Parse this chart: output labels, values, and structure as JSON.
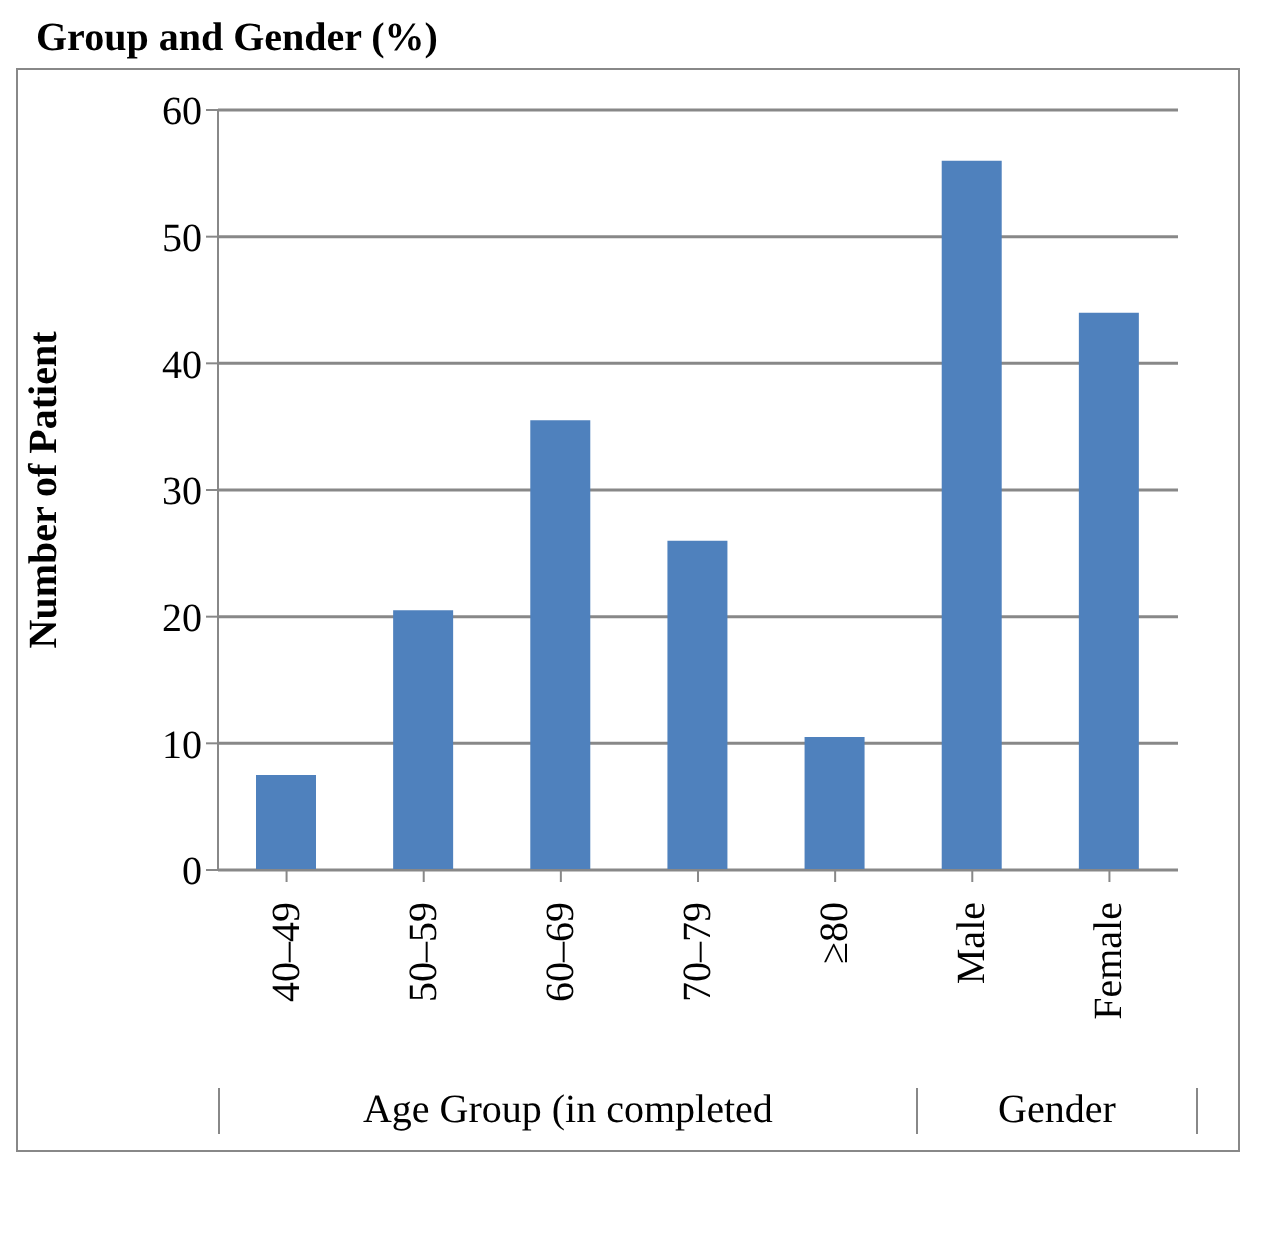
{
  "chart_data": {
    "type": "bar",
    "title": "Group and Gender (%)",
    "ylabel": "Number of Patient",
    "categories": [
      "40–49",
      "50–59",
      "60–69",
      "70–79",
      "≥80",
      "Male",
      "Female"
    ],
    "values": [
      7.5,
      20.5,
      35.5,
      26,
      10.5,
      56,
      44
    ],
    "color": "#4f81bd",
    "ylim": [
      0,
      60
    ],
    "yticks": [
      0,
      10,
      20,
      30,
      40,
      50,
      60
    ],
    "grid": "y",
    "annotations": [
      "Age Group (in completed",
      "Gender"
    ]
  }
}
